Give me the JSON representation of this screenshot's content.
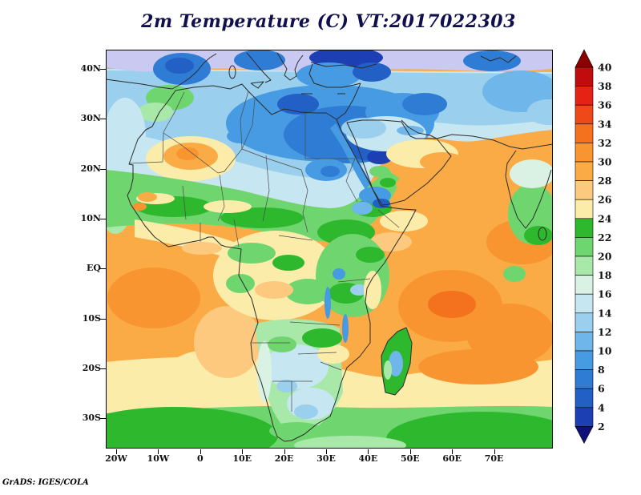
{
  "title": {
    "text": "2m Temperature (C) VT:2017022303",
    "color": "#10104e"
  },
  "credit": {
    "text": "GrADS: IGES/COLA"
  },
  "chart_data": {
    "type": "heatmap",
    "title": "2m Temperature (C) VT:2017022303",
    "variable": "2m Temperature",
    "units": "C",
    "valid_time": "2017022303",
    "lat_tick_labels": [
      "40N",
      "30N",
      "20N",
      "10N",
      "EQ",
      "10S",
      "20S",
      "30S"
    ],
    "lon_tick_labels": [
      "20W",
      "10W",
      "0",
      "10E",
      "20E",
      "30E",
      "40E",
      "50E",
      "60E",
      "70E"
    ],
    "contour_levels": [
      2,
      4,
      6,
      8,
      10,
      12,
      14,
      16,
      18,
      20,
      22,
      24,
      26,
      28,
      30,
      32,
      34,
      36,
      38,
      40
    ],
    "legend_position": "right",
    "source_label": "GrADS: IGES/COLA",
    "colorbar": {
      "labels_top_to_bottom": [
        "40",
        "38",
        "36",
        "34",
        "32",
        "30",
        "28",
        "26",
        "24",
        "22",
        "20",
        "18",
        "16",
        "14",
        "12",
        "10",
        "8",
        "6",
        "4",
        "2"
      ],
      "colors_top_to_bottom": [
        "#8b0000",
        "#c00c0c",
        "#e62214",
        "#ef491a",
        "#f4711e",
        "#f89530",
        "#fbab46",
        "#fcc97e",
        "#fcecaa",
        "#2eb82e",
        "#6fd66f",
        "#a8e8a8",
        "#daf2e4",
        "#c6e6f2",
        "#9bcfee",
        "#6fb6ea",
        "#479be2",
        "#2f7cd4",
        "#2360c6",
        "#1c40b4",
        "#10107a"
      ]
    },
    "palette": {
      "lt2": "#10107a",
      "b2_4": "#1c40b4",
      "b4_6": "#2360c6",
      "b6_8": "#2f7cd4",
      "b8_10": "#479be2",
      "b10_12": "#6fb6ea",
      "b12_14": "#9bcfee",
      "b14_16": "#c6e6f2",
      "b16_18": "#daf2e4",
      "b18_20": "#a8e8a8",
      "b20_22": "#6fd66f",
      "b22_24": "#2eb82e",
      "b24_26": "#fcecaa",
      "b26_28": "#fcc97e",
      "b28_30": "#fbab46",
      "b30_32": "#f89530",
      "b32_34": "#f4711e",
      "b34_36": "#ef491a",
      "b36_38": "#e62214",
      "b38_40": "#c00c0c",
      "gt40": "#8b0000",
      "lavender": "#c9c9f2",
      "outline": "#2b2b2b",
      "border": "#4a4a4a"
    }
  }
}
